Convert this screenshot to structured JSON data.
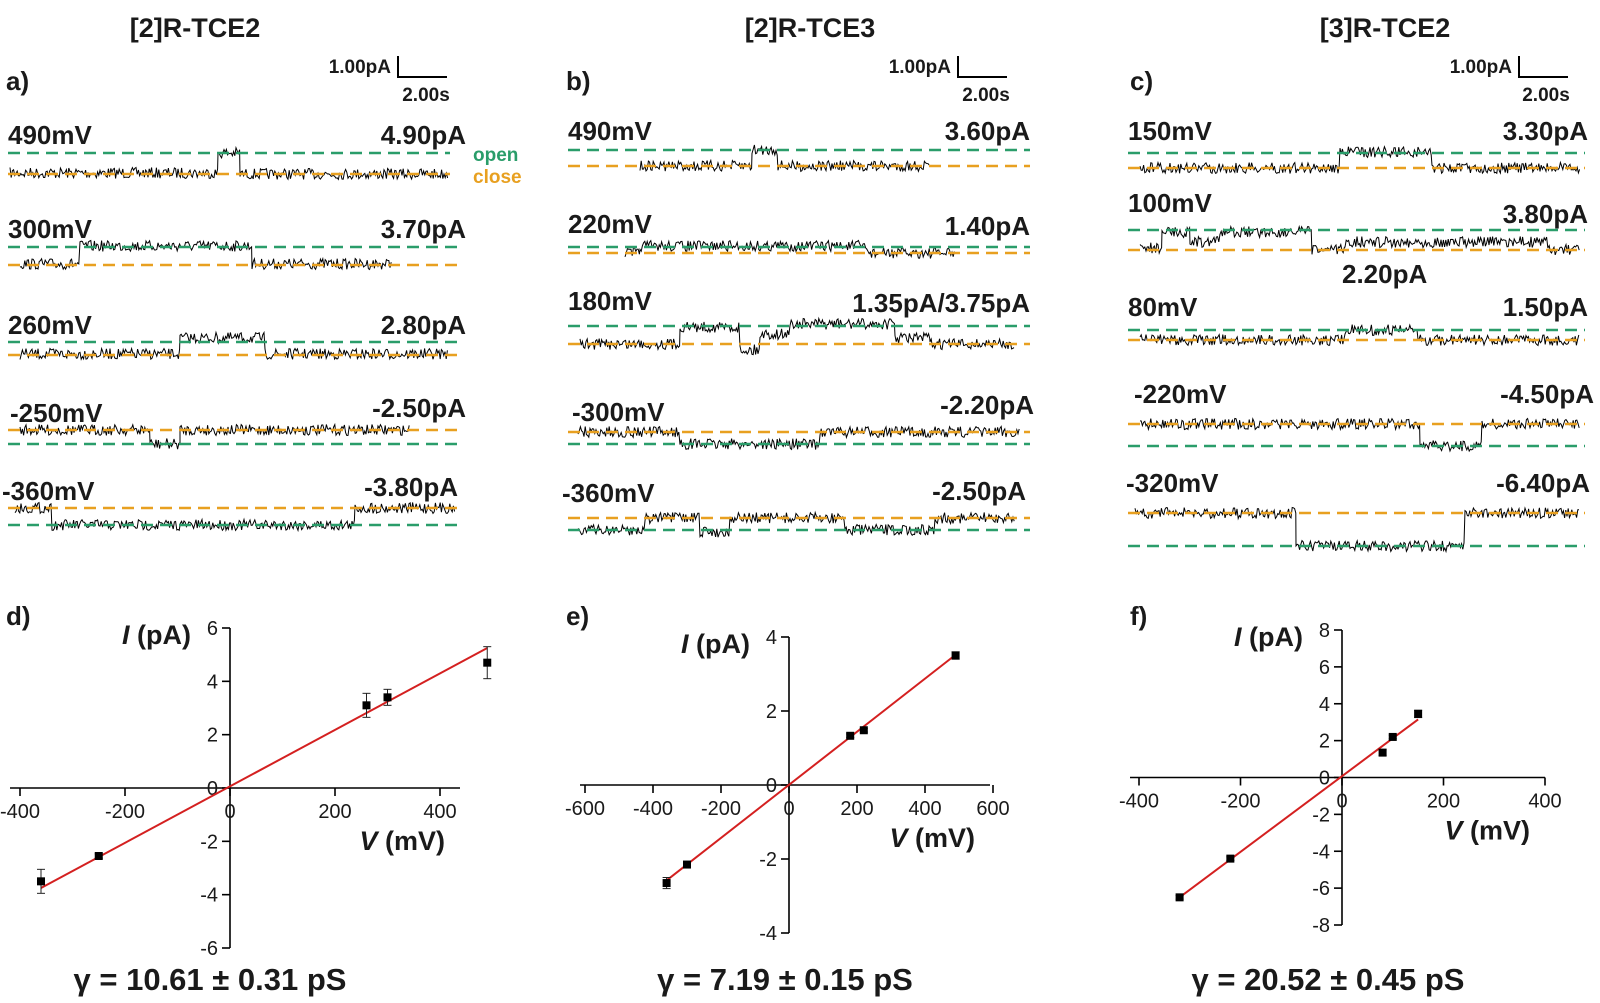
{
  "colors": {
    "open": "#2a9d6a",
    "close": "#e8a020",
    "trace": "#000000",
    "fit": "#d42020"
  },
  "legend": {
    "open": "open",
    "close": "close"
  },
  "scale_bar": {
    "current": "1.00pA",
    "time": "2.00s"
  },
  "columns": [
    {
      "title": "[2]R-TCE2",
      "trace_label": "a)",
      "traces": [
        {
          "voltage": "490mV",
          "current": "4.90pA"
        },
        {
          "voltage": "300mV",
          "current": "3.70pA"
        },
        {
          "voltage": "260mV",
          "current": "2.80pA"
        },
        {
          "voltage": "-250mV",
          "current": "-2.50pA"
        },
        {
          "voltage": "-360mV",
          "current": "-3.80pA"
        }
      ],
      "iv_label": "d)",
      "gamma": "γ = 10.61 ± 0.31 pS"
    },
    {
      "title": "[2]R-TCE3",
      "trace_label": "b)",
      "traces": [
        {
          "voltage": "490mV",
          "current": "3.60pA"
        },
        {
          "voltage": "220mV",
          "current": "1.40pA"
        },
        {
          "voltage": "180mV",
          "current": "1.35pA/3.75pA"
        },
        {
          "voltage": "-300mV",
          "current": "-2.20pA"
        },
        {
          "voltage": "-360mV",
          "current": "-2.50pA"
        }
      ],
      "iv_label": "e)",
      "gamma": "γ = 7.19 ± 0.15 pS"
    },
    {
      "title": "[3]R-TCE2",
      "trace_label": "c)",
      "traces": [
        {
          "voltage": "150mV",
          "current": "3.30pA"
        },
        {
          "voltage": "100mV",
          "current": "3.80pA",
          "extra": "2.20pA"
        },
        {
          "voltage": "80mV",
          "current": "1.50pA"
        },
        {
          "voltage": "-220mV",
          "current": "-4.50pA"
        },
        {
          "voltage": "-320mV",
          "current": "-6.40pA"
        }
      ],
      "iv_label": "f)",
      "gamma": "γ = 20.52 ± 0.45 pS"
    }
  ],
  "chart_data": [
    {
      "type": "scatter",
      "xlabel": "V (mV)",
      "ylabel": "I (pA)",
      "xlim": [
        -450,
        500
      ],
      "ylim": [
        -6,
        6
      ],
      "xticks": [
        -400,
        -200,
        0,
        200,
        400
      ],
      "yticks": [
        -6,
        -4,
        -2,
        0,
        2,
        4,
        6
      ],
      "points": [
        {
          "x": -360,
          "y": -3.5,
          "err": 0.45
        },
        {
          "x": -250,
          "y": -2.55,
          "err": 0.08
        },
        {
          "x": 260,
          "y": 3.1,
          "err": 0.45
        },
        {
          "x": 300,
          "y": 3.4,
          "err": 0.3
        },
        {
          "x": 490,
          "y": 4.7,
          "err": 0.6
        }
      ],
      "fit": {
        "x": [
          -360,
          490
        ],
        "y": [
          -3.75,
          5.25
        ]
      }
    },
    {
      "type": "scatter",
      "xlabel": "V (mV)",
      "ylabel": "I (pA)",
      "xlim": [
        -600,
        600
      ],
      "ylim": [
        -4,
        4
      ],
      "xticks": [
        -600,
        -400,
        -200,
        0,
        200,
        400,
        600
      ],
      "yticks": [
        -4,
        -2,
        0,
        2,
        4
      ],
      "points": [
        {
          "x": -360,
          "y": -2.65,
          "err": 0.15
        },
        {
          "x": -300,
          "y": -2.15,
          "err": 0.05
        },
        {
          "x": 180,
          "y": 1.33,
          "err": 0.05
        },
        {
          "x": 220,
          "y": 1.48,
          "err": 0.05
        },
        {
          "x": 490,
          "y": 3.5,
          "err": 0.1
        }
      ],
      "fit": {
        "x": [
          -370,
          490
        ],
        "y": [
          -2.65,
          3.52
        ]
      }
    },
    {
      "type": "scatter",
      "xlabel": "V (mV)",
      "ylabel": "I (pA)",
      "xlim": [
        -400,
        400
      ],
      "ylim": [
        -8,
        8
      ],
      "xticks": [
        -400,
        -200,
        0,
        200,
        400
      ],
      "yticks": [
        -8,
        -6,
        -4,
        -2,
        0,
        2,
        4,
        6,
        8
      ],
      "points": [
        {
          "x": -320,
          "y": -6.5,
          "err": 0.1
        },
        {
          "x": -220,
          "y": -4.4,
          "err": 0.1
        },
        {
          "x": 80,
          "y": 1.35,
          "err": 0.15
        },
        {
          "x": 100,
          "y": 2.2,
          "err": 0.1
        },
        {
          "x": 150,
          "y": 3.45,
          "err": 0.2
        }
      ],
      "fit": {
        "x": [
          -320,
          150
        ],
        "y": [
          -6.5,
          3.15
        ]
      }
    }
  ]
}
